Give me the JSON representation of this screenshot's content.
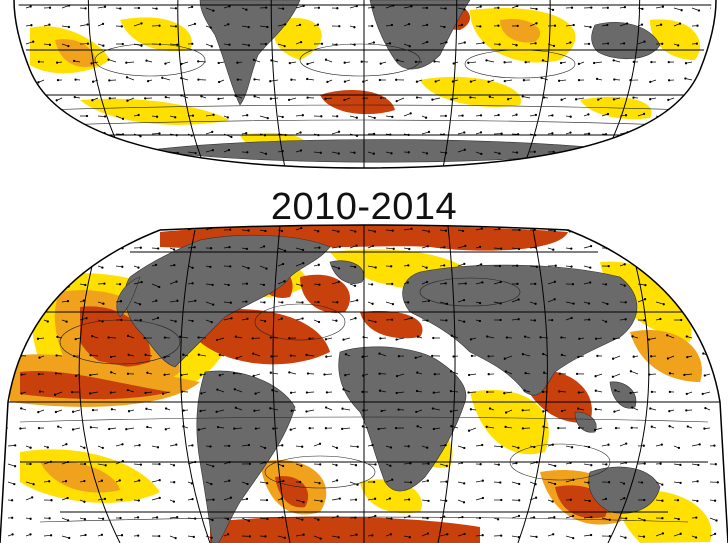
{
  "panels": [
    {
      "id": "earlier-period",
      "title": ""
    },
    {
      "id": "2010-2014",
      "title": "2010-2014"
    }
  ],
  "colors": {
    "land": "#6a6a6a",
    "ocean": "#ffffff",
    "anomaly_low": "#ffe000",
    "anomaly_mid": "#f0a21c",
    "anomaly_high": "#c8400c",
    "anomaly_max": "#a12708",
    "gridline": "#000000",
    "vector": "#000000"
  },
  "map": {
    "projection": "robinson",
    "graticule": "30-degree",
    "overlays": [
      "wind-vectors",
      "contours"
    ]
  }
}
